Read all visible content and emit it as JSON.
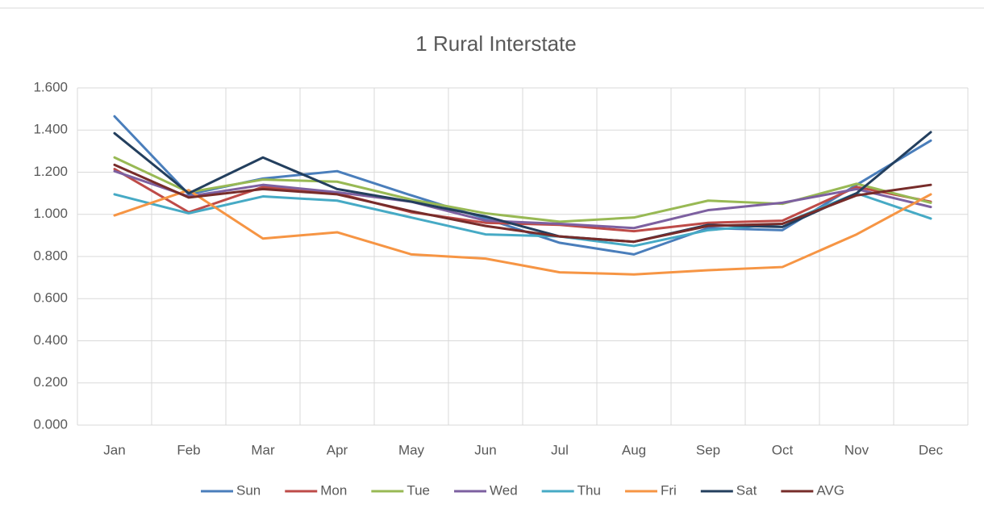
{
  "chart_data": {
    "type": "line",
    "title": "1 Rural Interstate",
    "categories": [
      "Jan",
      "Feb",
      "Mar",
      "Apr",
      "May",
      "Jun",
      "Jul",
      "Aug",
      "Sep",
      "Oct",
      "Nov",
      "Dec"
    ],
    "ylim": [
      0,
      1.6
    ],
    "yticks": [
      {
        "value": 0,
        "label": "0.000"
      },
      {
        "value": 0.2,
        "label": "0.200"
      },
      {
        "value": 0.4,
        "label": "0.400"
      },
      {
        "value": 0.6,
        "label": "0.600"
      },
      {
        "value": 0.8,
        "label": "0.800"
      },
      {
        "value": 1.0,
        "label": "1.000"
      },
      {
        "value": 1.2,
        "label": "1.200"
      },
      {
        "value": 1.4,
        "label": "1.400"
      },
      {
        "value": 1.6,
        "label": "1.600"
      }
    ],
    "grid": true,
    "legend": "bottom",
    "series": [
      {
        "name": "Sun",
        "color": "#4a7ebb",
        "values": [
          1.465,
          1.095,
          1.17,
          1.205,
          1.09,
          0.98,
          0.865,
          0.81,
          0.935,
          0.925,
          1.14,
          1.35
        ]
      },
      {
        "name": "Mon",
        "color": "#be4b48",
        "values": [
          1.215,
          1.01,
          1.13,
          1.1,
          1.01,
          0.96,
          0.95,
          0.92,
          0.96,
          0.97,
          1.13,
          1.06
        ]
      },
      {
        "name": "Tue",
        "color": "#98b954",
        "values": [
          1.27,
          1.105,
          1.165,
          1.155,
          1.07,
          1.005,
          0.965,
          0.985,
          1.065,
          1.05,
          1.145,
          1.055
        ]
      },
      {
        "name": "Wed",
        "color": "#7d60a0",
        "values": [
          1.205,
          1.085,
          1.14,
          1.105,
          1.06,
          0.97,
          0.955,
          0.935,
          1.02,
          1.055,
          1.12,
          1.035
        ]
      },
      {
        "name": "Thu",
        "color": "#46aac5",
        "values": [
          1.095,
          1.005,
          1.085,
          1.065,
          0.985,
          0.905,
          0.895,
          0.85,
          0.925,
          0.955,
          1.1,
          0.98
        ]
      },
      {
        "name": "Fri",
        "color": "#f69544",
        "values": [
          0.995,
          1.115,
          0.885,
          0.915,
          0.81,
          0.79,
          0.725,
          0.715,
          0.735,
          0.75,
          0.905,
          1.095
        ]
      },
      {
        "name": "Sat",
        "color": "#233f5e",
        "values": [
          1.385,
          1.1,
          1.27,
          1.12,
          1.06,
          0.99,
          0.895,
          0.87,
          0.95,
          0.94,
          1.1,
          1.39
        ]
      },
      {
        "name": "AVG",
        "color": "#772c2a",
        "values": [
          1.235,
          1.08,
          1.12,
          1.095,
          1.015,
          0.945,
          0.895,
          0.87,
          0.945,
          0.955,
          1.09,
          1.14
        ]
      }
    ]
  }
}
